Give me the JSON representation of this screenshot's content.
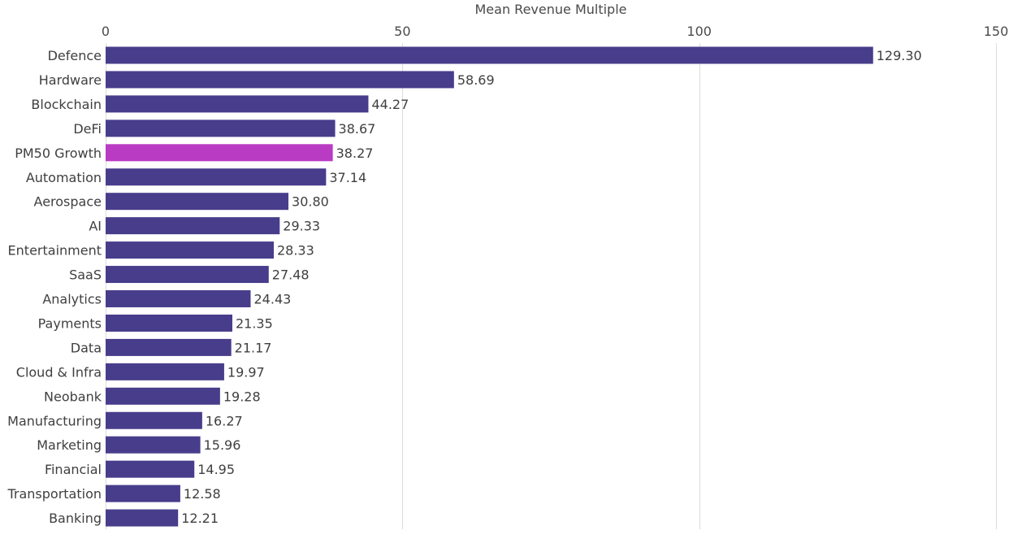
{
  "chart_data": {
    "type": "bar",
    "orientation": "horizontal",
    "xlabel": "Mean Revenue Multiple",
    "xlim": [
      0,
      150
    ],
    "xticks": [
      0,
      50,
      100,
      150
    ],
    "x_axis_position": "top",
    "grid": true,
    "colors": {
      "default": "#483D8B",
      "highlight": "#B93BC3"
    },
    "highlighted_category": "PM50 Growth",
    "categories": [
      "Defence",
      "Hardware",
      "Blockchain",
      "DeFi",
      "PM50 Growth",
      "Automation",
      "Aerospace",
      "AI",
      "Entertainment",
      "SaaS",
      "Analytics",
      "Payments",
      "Data",
      "Cloud & Infra",
      "Neobank",
      "Manufacturing",
      "Marketing",
      "Financial",
      "Transportation",
      "Banking"
    ],
    "values": [
      129.3,
      58.69,
      44.27,
      38.67,
      38.27,
      37.14,
      30.8,
      29.33,
      28.33,
      27.48,
      24.43,
      21.35,
      21.17,
      19.97,
      19.28,
      16.27,
      15.96,
      14.95,
      12.58,
      12.21
    ],
    "value_labels": [
      "129.30",
      "58.69",
      "44.27",
      "38.67",
      "38.27",
      "37.14",
      "30.80",
      "29.33",
      "28.33",
      "27.48",
      "24.43",
      "21.35",
      "21.17",
      "19.97",
      "19.28",
      "16.27",
      "15.96",
      "14.95",
      "12.58",
      "12.21"
    ]
  }
}
